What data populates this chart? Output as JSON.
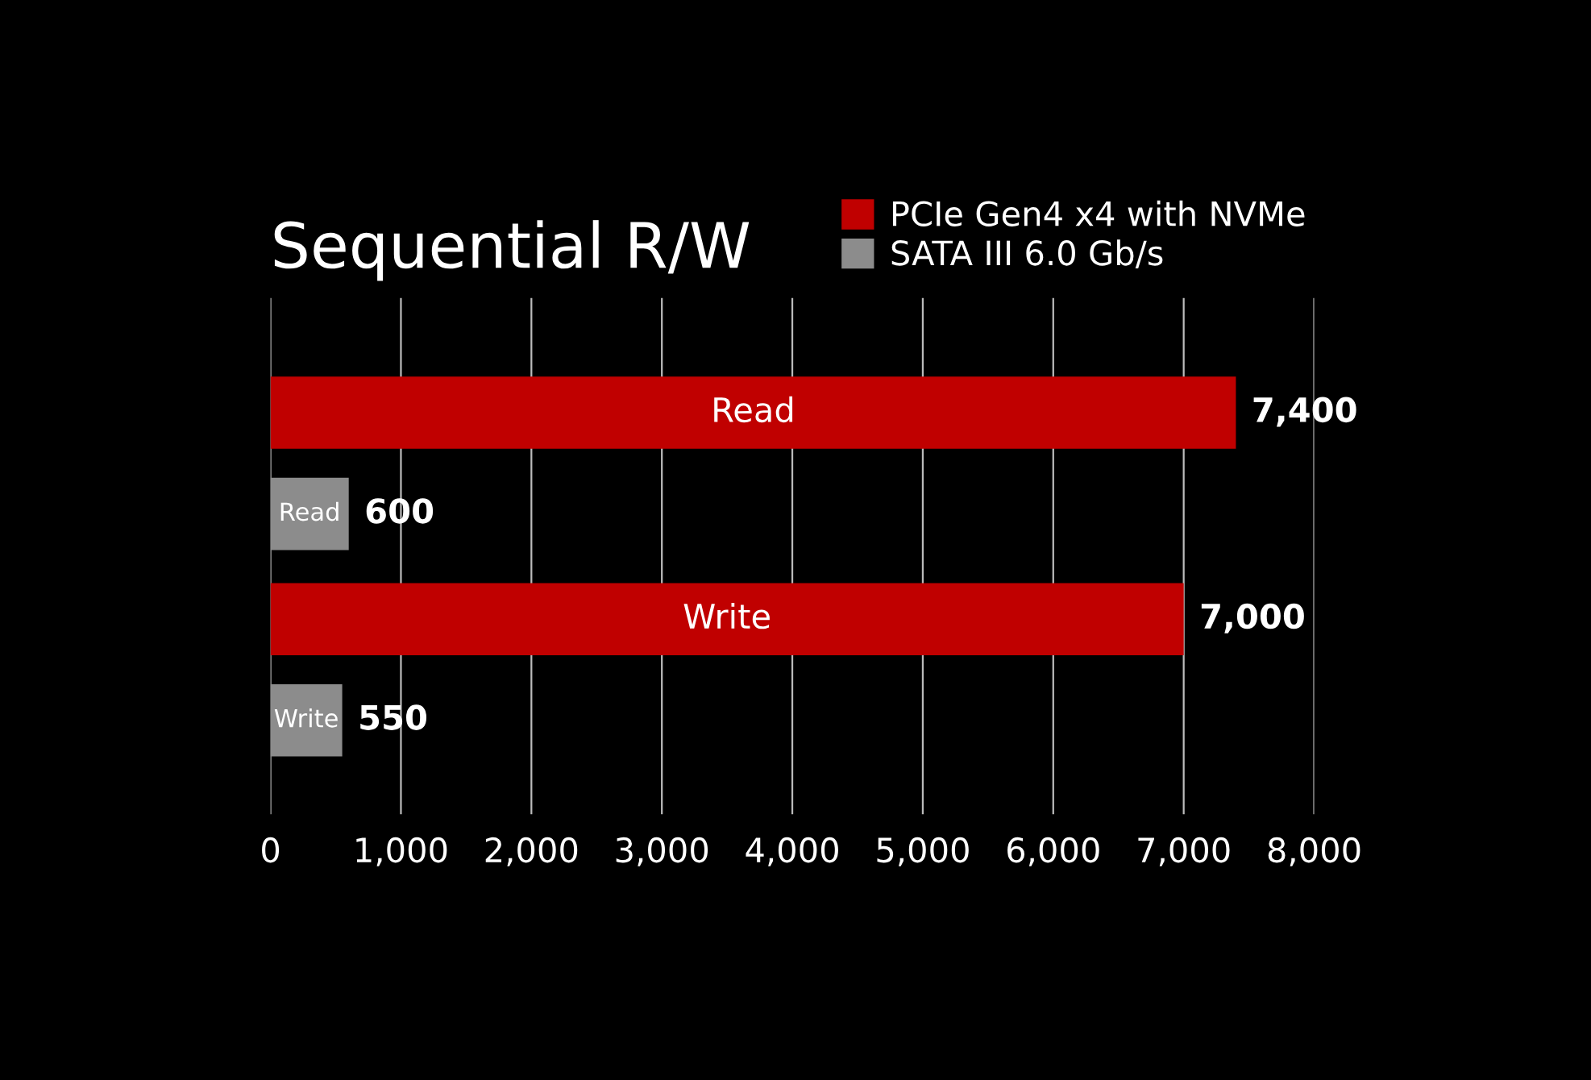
{
  "chart_data": {
    "type": "bar",
    "orientation": "horizontal",
    "title": "Sequential R/W",
    "categories": [
      "Read",
      "Write"
    ],
    "series": [
      {
        "name": "PCIe Gen4 x4 with NVMe",
        "color": "#c00000",
        "values": [
          7400,
          7000
        ],
        "value_labels": [
          "7,400",
          "7,000"
        ]
      },
      {
        "name": "SATA III 6.0 Gb/s",
        "color": "#8c8c8c",
        "values": [
          600,
          550
        ],
        "value_labels": [
          "600",
          "550"
        ]
      }
    ],
    "xlim": [
      0,
      8000
    ],
    "xticks": [
      0,
      {
        "value": 1000,
        "label": "1,000"
      },
      {
        "value": 2000,
        "label": "2,000"
      },
      {
        "value": 3000,
        "label": "3,000"
      },
      {
        "value": 4000,
        "label": "4,000"
      },
      {
        "value": 5000,
        "label": "5,000"
      },
      {
        "value": 6000,
        "label": "6,000"
      },
      {
        "value": 7000,
        "label": "7,000"
      },
      {
        "value": 8000,
        "label": "8,000"
      }
    ],
    "grid": "x",
    "legend": "top right"
  }
}
